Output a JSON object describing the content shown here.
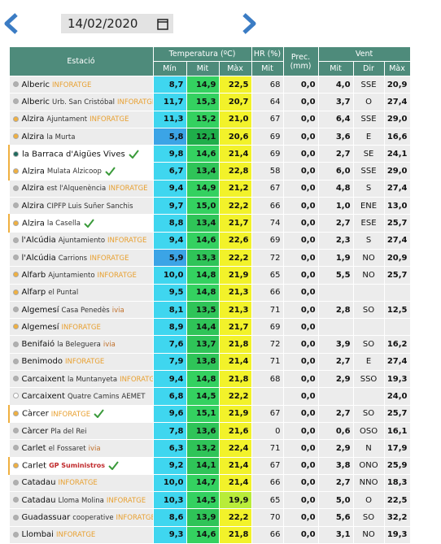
{
  "header": {
    "date": "14/02/2020"
  },
  "table": {
    "columns": [
      "Estació",
      "Temperatura (ºC)",
      "HR (%)",
      "Prec. (mm)",
      "Vent"
    ],
    "subcolumns": [
      "Mín",
      "Mit",
      "Màx",
      "Mit",
      "Mit",
      "Dir",
      "Màx"
    ],
    "rows": [
      {
        "dot": "#b0b0b0",
        "name": "Alberic",
        "tag": "INFORATGE",
        "cells": [
          "8,7",
          "14,9",
          "22,5",
          "68",
          "0,0",
          "4,0",
          "SSE",
          "20,9"
        ]
      },
      {
        "dot": "#b0b0b0",
        "name": "Alberic",
        "sub": "Urb. San Cristóbal",
        "tag": "INFORATGE",
        "cells": [
          "11,7",
          "15,3",
          "20,7",
          "64",
          "0,0",
          "3,7",
          "O",
          "27,4"
        ]
      },
      {
        "dot": "#f0b040",
        "name": "Alzira",
        "sub": "Ajuntament",
        "tag": "INFORATGE",
        "cells": [
          "11,3",
          "15,2",
          "21,0",
          "67",
          "0,0",
          "6,4",
          "SSE",
          "29,0"
        ]
      },
      {
        "dot": "#f0b040",
        "name": "Alzira",
        "sub": "la Murta",
        "cells": [
          "5,8",
          "12,1",
          "20,6",
          "69",
          "0,0",
          "3,6",
          "E",
          "16,6"
        ]
      },
      {
        "dot": "#1f6b5e",
        "name": "la Barraca d'Aigües Vives",
        "check": true,
        "highlight": true,
        "cells": [
          "9,8",
          "14,6",
          "21,4",
          "69",
          "0,0",
          "2,7",
          "SE",
          "24,1"
        ]
      },
      {
        "dot": "#f0b040",
        "name": "Alzira",
        "sub": "Mulata Alzicoop",
        "check": true,
        "highlight": true,
        "cells": [
          "6,7",
          "13,4",
          "22,8",
          "58",
          "0,0",
          "6,0",
          "SSE",
          "29,0"
        ]
      },
      {
        "dot": "#b0b0b0",
        "name": "Alzira",
        "sub": "est l'Alquenència",
        "tag": "INFORATGE",
        "cells": [
          "9,4",
          "14,9",
          "21,2",
          "67",
          "0,0",
          "4,8",
          "S",
          "27,4"
        ]
      },
      {
        "dot": "#b0b0b0",
        "name": "Alzira",
        "sub": "CIPFP Luis Suñer Sanchis",
        "cells": [
          "9,7",
          "15,0",
          "22,2",
          "66",
          "0,0",
          "1,0",
          "ENE",
          "13,0"
        ]
      },
      {
        "dot": "#f0b040",
        "name": "Alzira",
        "sub": "la Casella",
        "check": true,
        "highlight": true,
        "cells": [
          "8,8",
          "13,4",
          "21,7",
          "74",
          "0,0",
          "2,7",
          "ESE",
          "25,7"
        ]
      },
      {
        "dot": "#b0b0b0",
        "name": "l'Alcúdia",
        "sub": "Ajuntamiento",
        "tag": "INFORATGE",
        "cells": [
          "9,4",
          "14,6",
          "22,6",
          "69",
          "0,0",
          "2,3",
          "S",
          "27,4"
        ]
      },
      {
        "dot": "#b0b0b0",
        "name": "l'Alcúdia",
        "sub": "Carrions",
        "tag": "INFORATGE",
        "cells": [
          "5,9",
          "13,3",
          "22,2",
          "72",
          "0,0",
          "1,9",
          "NO",
          "20,9"
        ]
      },
      {
        "dot": "#f0b040",
        "name": "Alfarb",
        "sub": "Ajuntamiento",
        "tag": "INFORATGE",
        "cells": [
          "10,0",
          "14,8",
          "21,9",
          "65",
          "0,0",
          "5,5",
          "NO",
          "25,7"
        ]
      },
      {
        "dot": "#f0b040",
        "name": "Alfarp",
        "sub": "el Puntal",
        "cells": [
          "9,5",
          "14,8",
          "21,3",
          "66",
          "0,0",
          null,
          null,
          null
        ]
      },
      {
        "dot": "#b0b0b0",
        "name": "Algemesí",
        "sub": "Casa Penedès",
        "tag": "ivia",
        "cells": [
          "8,1",
          "13,5",
          "21,3",
          "71",
          "0,0",
          "2,8",
          "SO",
          "12,5"
        ]
      },
      {
        "dot": "#f0b040",
        "name": "Algemesí",
        "tag": "INFORATGE",
        "cells": [
          "8,9",
          "14,4",
          "21,7",
          "69",
          "0,0",
          null,
          null,
          null
        ]
      },
      {
        "dot": "#b0b0b0",
        "name": "Benifaió",
        "sub": "la Beleguera",
        "tag": "ivia",
        "cells": [
          "7,6",
          "13,7",
          "21,8",
          "72",
          "0,0",
          "3,9",
          "SO",
          "16,2"
        ]
      },
      {
        "dot": "#b0b0b0",
        "name": "Benimodo",
        "tag": "INFORATGE",
        "cells": [
          "7,9",
          "13,8",
          "21,4",
          "71",
          "0,0",
          "2,7",
          "E",
          "27,4"
        ]
      },
      {
        "dot": "#b0b0b0",
        "name": "Carcaixent",
        "sub": "la Muntanyeta",
        "tag": "INFORATGE",
        "cells": [
          "9,4",
          "14,8",
          "21,8",
          "68",
          "0,0",
          "2,9",
          "SSO",
          "19,3"
        ]
      },
      {
        "dot": "#ffffff",
        "name": "Carcaixent",
        "sub": "Quatre Camins",
        "tag": "AEMET",
        "cells": [
          "6,8",
          "14,5",
          "22,2",
          null,
          "0,0",
          null,
          null,
          "24,0"
        ]
      },
      {
        "dot": "#f0b040",
        "name": "Càrcer",
        "tag": "INFORATGE",
        "check": true,
        "highlight": true,
        "cells": [
          "9,6",
          "15,1",
          "21,9",
          "67",
          "0,0",
          "2,7",
          "SO",
          "25,7"
        ]
      },
      {
        "dot": "#b0b0b0",
        "name": "Càrcer",
        "sub": "Pla del Rei",
        "cells": [
          "7,8",
          "13,6",
          "21,6",
          "0",
          "0,0",
          "0,6",
          "OSO",
          "16,1"
        ]
      },
      {
        "dot": "#b0b0b0",
        "name": "Carlet",
        "sub": "el Fossaret",
        "tag": "ivia",
        "cells": [
          "6,3",
          "13,2",
          "22,4",
          "71",
          "0,0",
          "2,9",
          "N",
          "17,9"
        ]
      },
      {
        "dot": "#f0b040",
        "name": "Carlet",
        "tag": "GP Suministros",
        "check": true,
        "highlight": true,
        "cells": [
          "9,2",
          "14,1",
          "21,4",
          "67",
          "0,0",
          "3,8",
          "ONO",
          "25,9"
        ]
      },
      {
        "dot": "#b0b0b0",
        "name": "Catadau",
        "tag": "INFORATGE",
        "cells": [
          "10,0",
          "14,7",
          "21,4",
          "66",
          "0,0",
          "2,7",
          "NNO",
          "18,3"
        ]
      },
      {
        "dot": "#b0b0b0",
        "name": "Catadau",
        "sub": "Lloma Molina",
        "tag": "INFORATGE",
        "cells": [
          "10,3",
          "14,5",
          "19,9",
          "65",
          "0,0",
          "5,0",
          "O",
          "22,5"
        ]
      },
      {
        "dot": "#b0b0b0",
        "name": "Guadassuar",
        "sub": "cooperative",
        "tag": "INFORATGE",
        "cells": [
          "8,6",
          "13,9",
          "22,2",
          "70",
          "0,0",
          "5,6",
          "SO",
          "32,2"
        ]
      },
      {
        "dot": "#b0b0b0",
        "name": "Llombai",
        "tag": "INFORATGE",
        "cells": [
          "9,3",
          "14,6",
          "21,8",
          "66",
          "0,0",
          "3,1",
          "NO",
          "19,3"
        ]
      }
    ]
  }
}
